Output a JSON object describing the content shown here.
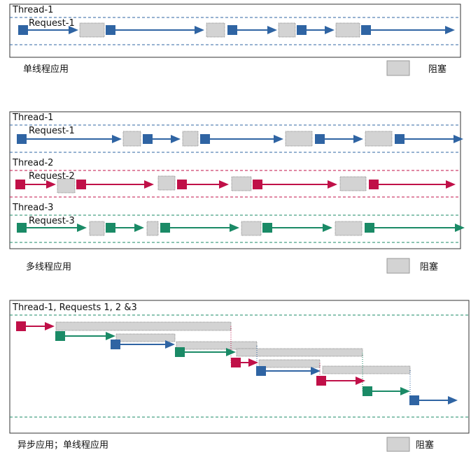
{
  "colors": {
    "blue": "#2f64a3",
    "red": "#c01048",
    "green": "#1a8a66",
    "block_fill": "#d3d3d3",
    "block_border": "#8a8a8a",
    "frame": "#333333"
  },
  "panel1": {
    "thread_labels": [
      "Thread-1"
    ],
    "request_labels": [
      "Request-1"
    ],
    "caption": "单线程应用",
    "legend_label": "阻塞"
  },
  "panel2": {
    "thread_labels": [
      "Thread-1",
      "Thread-2",
      "Thread-3"
    ],
    "request_labels": [
      "Request-1",
      "Request-2",
      "Request-3"
    ],
    "caption": "多线程应用",
    "legend_label": "阻塞"
  },
  "panel3": {
    "thread_labels": [
      "Thread-1, Requests 1, 2 &3"
    ],
    "caption": "异步应用；单线程应用",
    "legend_label": "阻塞"
  }
}
